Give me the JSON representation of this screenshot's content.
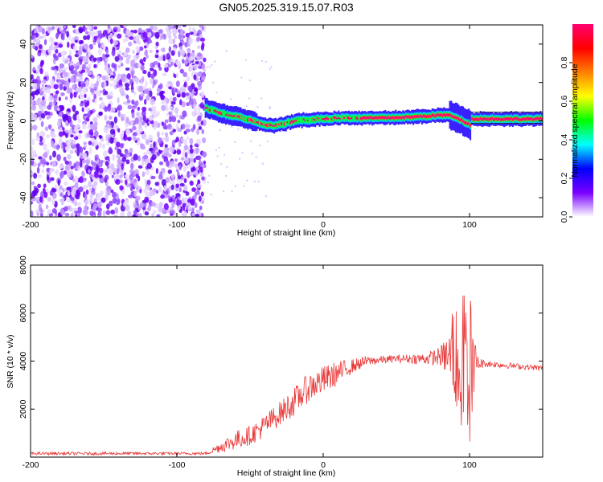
{
  "chart_data": [
    {
      "type": "heatmap",
      "title": "GN05.2025.319.15.07.R03",
      "xlabel": "Height of straight line (km)",
      "ylabel": "Frequency (Hz)",
      "xlim": [
        -200,
        150
      ],
      "ylim": [
        -50,
        50
      ],
      "xticks": [
        -200,
        -100,
        0,
        100
      ],
      "yticks": [
        -40,
        -20,
        0,
        20,
        40
      ],
      "noise_region_x": [
        -200,
        -81
      ],
      "ridge": {
        "x": [
          -81,
          -75,
          -70,
          -65,
          -60,
          -55,
          -50,
          -45,
          -40,
          -35,
          -30,
          -25,
          -20,
          -15,
          -10,
          -5,
          0,
          10,
          20,
          40,
          60,
          70,
          80,
          85,
          90,
          95,
          100,
          101,
          150
        ],
        "freq": [
          7,
          5,
          4,
          3,
          2.5,
          1.5,
          0.5,
          -1,
          -2,
          -2.5,
          -2,
          -1,
          0,
          0.5,
          0.5,
          1,
          1,
          1.5,
          1.5,
          1.5,
          2,
          2.5,
          3,
          3,
          2,
          0,
          -2,
          1,
          1
        ]
      },
      "colorbar": {
        "label": "Normalized spectral amplitude",
        "range": [
          0.0,
          1.0
        ],
        "ticks": [
          "0.0",
          "0.2",
          "0.4",
          "0.6",
          "0.8"
        ],
        "colors": [
          "#ffffff",
          "#7a00ff",
          "#0000ff",
          "#00ffff",
          "#00ff00",
          "#ffff00",
          "#ff8000",
          "#ff0000",
          "#ff0070"
        ]
      }
    },
    {
      "type": "line",
      "xlabel": "Height of straight line (km)",
      "ylabel": "SNR (10 * v/v)",
      "xlim": [
        -200,
        150
      ],
      "ylim": [
        0,
        8000
      ],
      "xticks": [
        -200,
        -100,
        0,
        100
      ],
      "yticks": [
        2000,
        4000,
        6000,
        8000
      ],
      "color": "#e83838",
      "envelope": {
        "x": [
          -200,
          -80,
          -75,
          -60,
          -50,
          -40,
          -30,
          -20,
          -10,
          0,
          10,
          20,
          30,
          50,
          70,
          80,
          85,
          90,
          95,
          100,
          105,
          110,
          130,
          150
        ],
        "mean": [
          150,
          150,
          300,
          700,
          900,
          1300,
          1800,
          2300,
          2900,
          3200,
          3500,
          3800,
          4000,
          4100,
          4100,
          4200,
          4200,
          4100,
          4000,
          3900,
          3900,
          3900,
          3800,
          3700
        ],
        "amp": [
          60,
          60,
          150,
          400,
          400,
          500,
          500,
          600,
          600,
          600,
          500,
          300,
          200,
          150,
          250,
          400,
          900,
          1800,
          2600,
          3000,
          400,
          150,
          120,
          120
        ]
      }
    }
  ]
}
